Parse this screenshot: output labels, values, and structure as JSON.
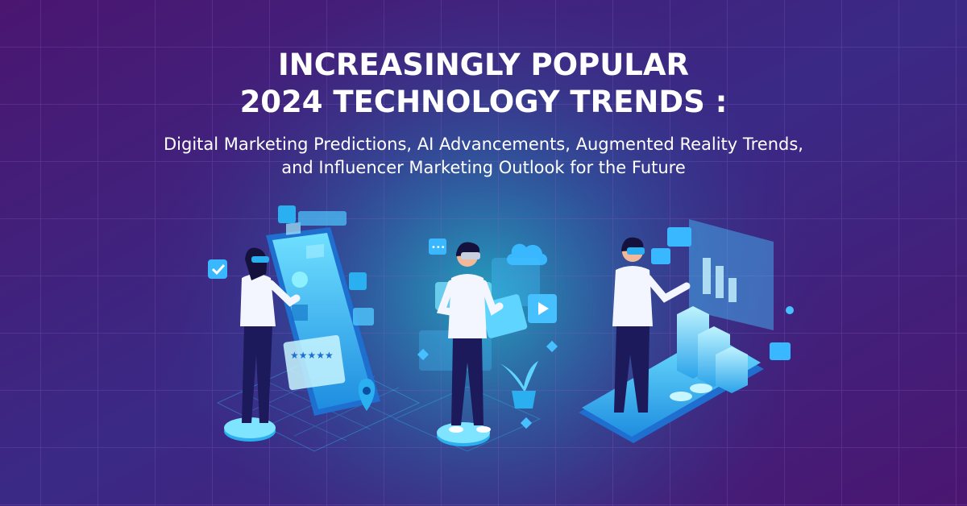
{
  "title": {
    "lines": [
      "INCREASINGLY POPULAR",
      "2024 TECHNOLOGY TRENDS :"
    ]
  },
  "subtitle": {
    "lines": [
      "Digital Marketing Predictions, AI Advancements, Augmented Reality Trends,",
      "and Influencer Marketing Outlook for the Future"
    ]
  }
}
